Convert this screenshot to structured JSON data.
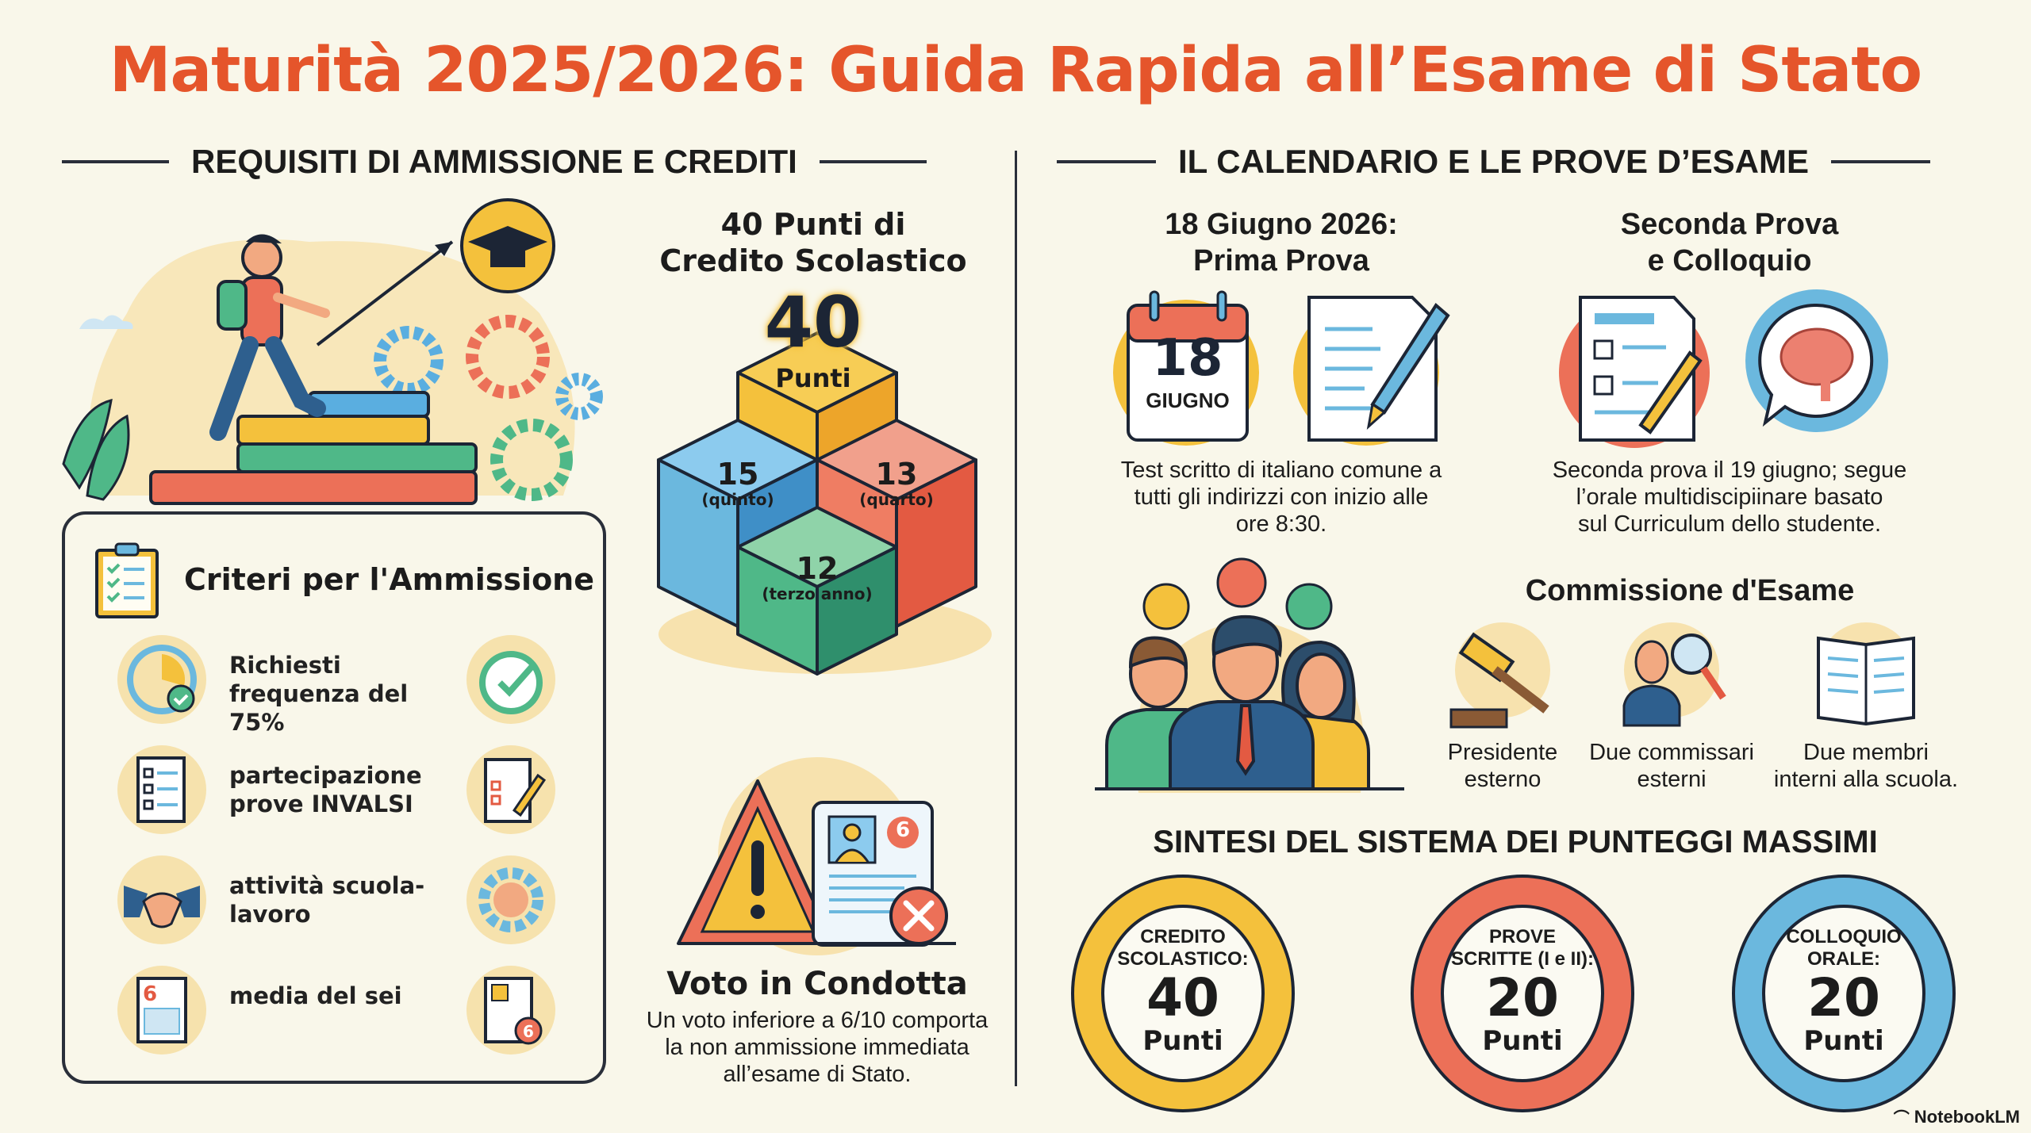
{
  "title": "Maturità 2025/2026: Guida Rapida all’Esame di Stato",
  "left_section": {
    "heading": "REQUISITI DI AMMISSIONE E CREDITI",
    "criteria": {
      "title": "Criteri per l'Ammissione",
      "items": [
        {
          "label": "Richiesti frequenza del 75%",
          "icon": "clock-check-icon",
          "side_icon": "clock-checkmark-icon"
        },
        {
          "label": "partecipazione prove INVALSI",
          "icon": "checklist-icon",
          "side_icon": "test-pencil-icon"
        },
        {
          "label": "attività scuola-lavoro",
          "icon": "handshake-icon",
          "side_icon": "gear-handshake-icon"
        },
        {
          "label": "media del sei",
          "icon": "report-card-6-icon",
          "side_icon": "profile-grade-6-icon"
        }
      ]
    },
    "credit": {
      "title_line1": "40 Punti di",
      "title_line2": "Credito Scolastico",
      "total_value": "40",
      "total_unit": "Punti",
      "blocks": [
        {
          "value": "15",
          "label": "(quinto)",
          "color": "#5aaee0"
        },
        {
          "value": "13",
          "label": "(quarto)",
          "color": "#ec7058"
        },
        {
          "value": "12",
          "label": "(terzo anno)",
          "color": "#4fb888"
        }
      ],
      "top_color": "#f4c13c"
    },
    "conduct": {
      "title": "Voto in Condotta",
      "badge": "6",
      "text_lines": [
        "Un voto inferiore a 6/10 comporta",
        "la non ammissione immediata",
        "all’esame di Stato."
      ]
    }
  },
  "right_section": {
    "heading": "IL CALENDARIO E LE PROVE D’ESAME",
    "prima": {
      "title_line1": "18 Giugno 2026:",
      "title_line2": "Prima Prova",
      "calendar_day": "18",
      "calendar_month": "GIUGNO",
      "text_lines": [
        "Test scritto di italiano comune a",
        "tutti gli indirizzi con inizio alle",
        "ore 8:30."
      ]
    },
    "seconda": {
      "title_line1": "Seconda Prova",
      "title_line2": "e Colloquio",
      "text_lines": [
        "Seconda prova il 19 giugno; segue",
        "l’orale multidiscipiinare basato",
        "sul Curriculum dello studente."
      ]
    },
    "commission": {
      "title": "Commissione d'Esame",
      "members": [
        {
          "line1": "Presidente",
          "line2": "esterno",
          "icon": "gavel-icon"
        },
        {
          "line1": "Due commissari",
          "line2": "esterni",
          "icon": "examiner-magnifier-icon"
        },
        {
          "line1": "Due membri",
          "line2": "interni alla scuola.",
          "icon": "open-book-icon"
        }
      ]
    },
    "summary": {
      "heading": "SINTESI DEL SISTEMA DEI PUNTEGGI MASSIMI",
      "rings": [
        {
          "label_line1": "CREDITO",
          "label_line2": "SCOLASTICO:",
          "value": "40",
          "unit": "Punti",
          "color": "#f4c13c"
        },
        {
          "label_line1": "PROVE",
          "label_line2": "SCRITTE (I e II):",
          "value": "20",
          "unit": "Punti",
          "color": "#ec7058"
        },
        {
          "label_line1": "COLLOQUIO",
          "label_line2": "ORALE:",
          "value": "20",
          "unit": "Punti",
          "color": "#6bb8de"
        }
      ]
    }
  },
  "watermark": "NotebookLM",
  "colors": {
    "title": "#e5552b",
    "background": "#f9f7ea",
    "ink": "#1c1c1c"
  }
}
